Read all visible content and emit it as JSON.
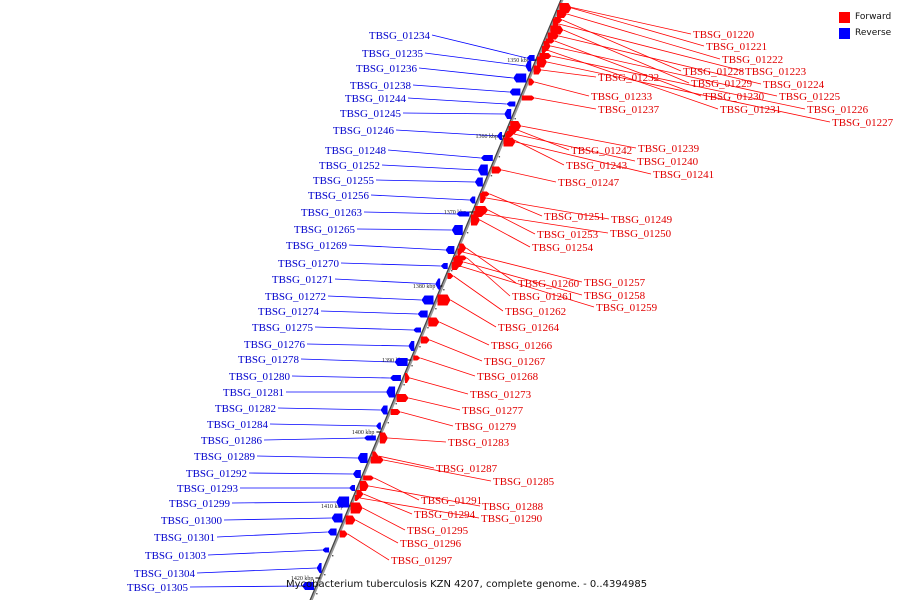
{
  "title": "Mycobacterium tuberculosis KZN 4207, complete genome. - 0..4394985",
  "legend": [
    {
      "label": "Forward",
      "color": "#ff0000"
    },
    {
      "label": "Reverse",
      "color": "#0000ff"
    }
  ],
  "ruler_ticks": [
    "1350 kbp",
    "1360 kbp",
    "1370 kbp",
    "1380 kbp",
    "1390 kbp",
    "1400 kbp",
    "1410 kbp",
    "1420 kbp"
  ],
  "forward_genes": [
    "TBSG_01220",
    "TBSG_01221",
    "TBSG_01222",
    "TBSG_01228",
    "TBSG_01223",
    "TBSG_01229",
    "TBSG_01224",
    "TBSG_01230",
    "TBSG_01225",
    "TBSG_01231",
    "TBSG_01226",
    "TBSG_01227",
    "TBSG_01232",
    "TBSG_01233",
    "TBSG_01237",
    "TBSG_01239",
    "TBSG_01242",
    "TBSG_01240",
    "TBSG_01243",
    "TBSG_01241",
    "TBSG_01247",
    "TBSG_01251",
    "TBSG_01249",
    "TBSG_01253",
    "TBSG_01250",
    "TBSG_01254",
    "TBSG_01260",
    "TBSG_01257",
    "TBSG_01261",
    "TBSG_01258",
    "TBSG_01259",
    "TBSG_01262",
    "TBSG_01264",
    "TBSG_01266",
    "TBSG_01267",
    "TBSG_01268",
    "TBSG_01273",
    "TBSG_01277",
    "TBSG_01279",
    "TBSG_01283",
    "TBSG_01287",
    "TBSG_01285",
    "TBSG_01291",
    "TBSG_01288",
    "TBSG_01294",
    "TBSG_01290",
    "TBSG_01295",
    "TBSG_01296",
    "TBSG_01297"
  ],
  "reverse_genes": [
    "TBSG_01234",
    "TBSG_01235",
    "TBSG_01236",
    "TBSG_01238",
    "TBSG_01244",
    "TBSG_01245",
    "TBSG_01246",
    "TBSG_01248",
    "TBSG_01252",
    "TBSG_01255",
    "TBSG_01256",
    "TBSG_01263",
    "TBSG_01265",
    "TBSG_01269",
    "TBSG_01270",
    "TBSG_01271",
    "TBSG_01272",
    "TBSG_01274",
    "TBSG_01275",
    "TBSG_01276",
    "TBSG_01278",
    "TBSG_01280",
    "TBSG_01281",
    "TBSG_01282",
    "TBSG_01284",
    "TBSG_01286",
    "TBSG_01289",
    "TBSG_01292",
    "TBSG_01293",
    "TBSG_01299",
    "TBSG_01300",
    "TBSG_01301",
    "TBSG_01303",
    "TBSG_01304",
    "TBSG_01305"
  ]
}
